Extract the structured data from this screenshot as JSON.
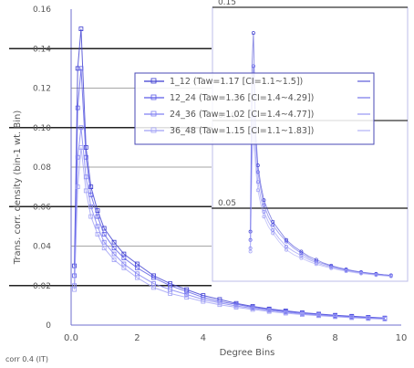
{
  "chart_data": {
    "type": "scatter",
    "xlabel": "Degree Bins",
    "ylabel": "Trans. corr. density (bin-1 wt. Bin)",
    "footnote": "corr 0.4 (IT)",
    "main": {
      "xlim": [
        0,
        10
      ],
      "ylim": [
        0,
        0.16
      ],
      "yticks": [
        "0.16",
        "0.14",
        "0.12",
        "0.10",
        "0.08",
        "0.06",
        "0.04",
        "0.02",
        "0"
      ],
      "xticks": [
        "0.0",
        "2",
        "4",
        "6",
        "8",
        "10"
      ]
    },
    "inset": {
      "yticks": [
        "0.15",
        "0.10",
        "0.05"
      ]
    },
    "legend": [
      {
        "label": "1_12 (Taw=1.17 [CI=1.1~1.5])",
        "color": "#3a3ad0"
      },
      {
        "label": "12_24 (Taw=1.36 [CI=1.4~4.29])",
        "color": "#5a5ae6"
      },
      {
        "label": "24_36 (Taw=1.02 [CI=1.4~4.77])",
        "color": "#8080f2"
      },
      {
        "label": "36_48 (Taw=1.15 [CI=1.1~1.83])",
        "color": "#a0a0f5"
      }
    ],
    "series": [
      {
        "name": "1_12",
        "x": [
          0.1,
          0.2,
          0.3,
          0.45,
          0.6,
          0.8,
          1.0,
          1.3,
          1.6,
          2.0,
          2.5,
          3.0,
          3.5,
          4.0,
          4.5,
          5.0,
          5.5,
          6.0,
          6.5,
          7.0,
          7.5,
          8.0,
          8.5,
          9.0,
          9.5
        ],
        "y": [
          0.03,
          0.13,
          0.15,
          0.09,
          0.07,
          0.058,
          0.049,
          0.042,
          0.036,
          0.031,
          0.025,
          0.021,
          0.018,
          0.015,
          0.013,
          0.011,
          0.0095,
          0.0082,
          0.0072,
          0.0063,
          0.0056,
          0.005,
          0.0045,
          0.004,
          0.0036
        ]
      },
      {
        "name": "12_24",
        "x": [
          0.1,
          0.2,
          0.3,
          0.45,
          0.6,
          0.8,
          1.0,
          1.3,
          1.6,
          2.0,
          2.5,
          3.0,
          3.5,
          4.0,
          4.5,
          5.0,
          5.5,
          6.0,
          6.5,
          7.0,
          7.5,
          8.0,
          8.5,
          9.0,
          9.5
        ],
        "y": [
          0.025,
          0.11,
          0.13,
          0.085,
          0.066,
          0.055,
          0.046,
          0.039,
          0.034,
          0.029,
          0.024,
          0.02,
          0.017,
          0.014,
          0.012,
          0.0105,
          0.009,
          0.0079,
          0.0069,
          0.0061,
          0.0054,
          0.0048,
          0.0043,
          0.0039,
          0.0035
        ]
      },
      {
        "name": "24_36",
        "x": [
          0.1,
          0.2,
          0.3,
          0.45,
          0.6,
          0.8,
          1.0,
          1.3,
          1.6,
          2.0,
          2.5,
          3.0,
          3.5,
          4.0,
          4.5,
          5.0,
          5.5,
          6.0,
          6.5,
          7.0,
          7.5,
          8.0,
          8.5,
          9.0,
          9.5
        ],
        "y": [
          0.02,
          0.085,
          0.1,
          0.075,
          0.06,
          0.05,
          0.042,
          0.036,
          0.031,
          0.026,
          0.021,
          0.018,
          0.0155,
          0.013,
          0.0112,
          0.0097,
          0.0085,
          0.0074,
          0.0065,
          0.0057,
          0.0051,
          0.0045,
          0.004,
          0.0036,
          0.0032
        ]
      },
      {
        "name": "36_48",
        "x": [
          0.1,
          0.2,
          0.3,
          0.45,
          0.6,
          0.8,
          1.0,
          1.3,
          1.6,
          2.0,
          2.5,
          3.0,
          3.5,
          4.0,
          4.5,
          5.0,
          5.5,
          6.0,
          6.5,
          7.0,
          7.5,
          8.0,
          8.5,
          9.0,
          9.5
        ],
        "y": [
          0.018,
          0.07,
          0.09,
          0.068,
          0.055,
          0.046,
          0.039,
          0.033,
          0.029,
          0.024,
          0.019,
          0.016,
          0.014,
          0.012,
          0.0103,
          0.009,
          0.0079,
          0.0069,
          0.006,
          0.0053,
          0.0047,
          0.0042,
          0.0037,
          0.0033,
          0.003
        ]
      }
    ]
  }
}
